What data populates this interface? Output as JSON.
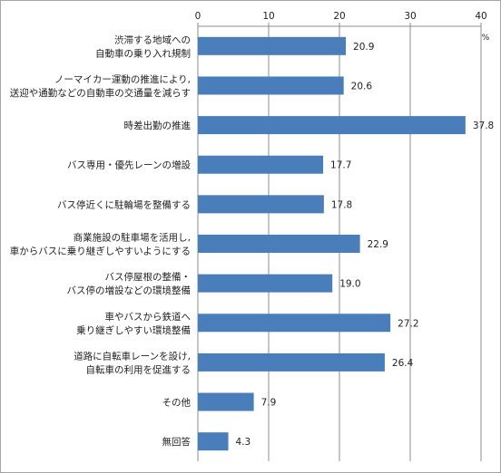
{
  "chart_data": {
    "type": "bar",
    "orientation": "horizontal",
    "unit": "%",
    "xlim": [
      0,
      40
    ],
    "ticks": [
      0,
      10,
      20,
      30,
      40
    ],
    "grid": true,
    "bar_color": "#4a7ebb",
    "categories": [
      [
        "渋滞する地域への",
        "自動車の乗り入れ規制"
      ],
      [
        "ノーマイカー運動の推進により,",
        "送迎や通勤などの自動車の交通量を減らす"
      ],
      [
        "時差出勤の推進"
      ],
      [
        "バス専用・優先レーンの増設"
      ],
      [
        "バス停近くに駐輪場を整備する"
      ],
      [
        "商業施設の駐車場を活用し,",
        "車からバスに乗り継ぎしやすいようにする"
      ],
      [
        "バス停屋根の整備・",
        "バス停の増設などの環境整備"
      ],
      [
        "車やバスから鉄道へ",
        "乗り継ぎしやすい環境整備"
      ],
      [
        "道路に自転車レーンを設け,",
        "自転車の利用を促進する"
      ],
      [
        "その他"
      ],
      [
        "無回答"
      ]
    ],
    "values": [
      20.9,
      20.6,
      37.8,
      17.7,
      17.8,
      22.9,
      19.0,
      27.2,
      26.4,
      7.9,
      4.3
    ],
    "value_labels": [
      "20.9",
      "20.6",
      "37.8",
      "17.7",
      "17.8",
      "22.9",
      "19.0",
      "27.2",
      "26.4",
      "7.9",
      "4.3"
    ]
  }
}
